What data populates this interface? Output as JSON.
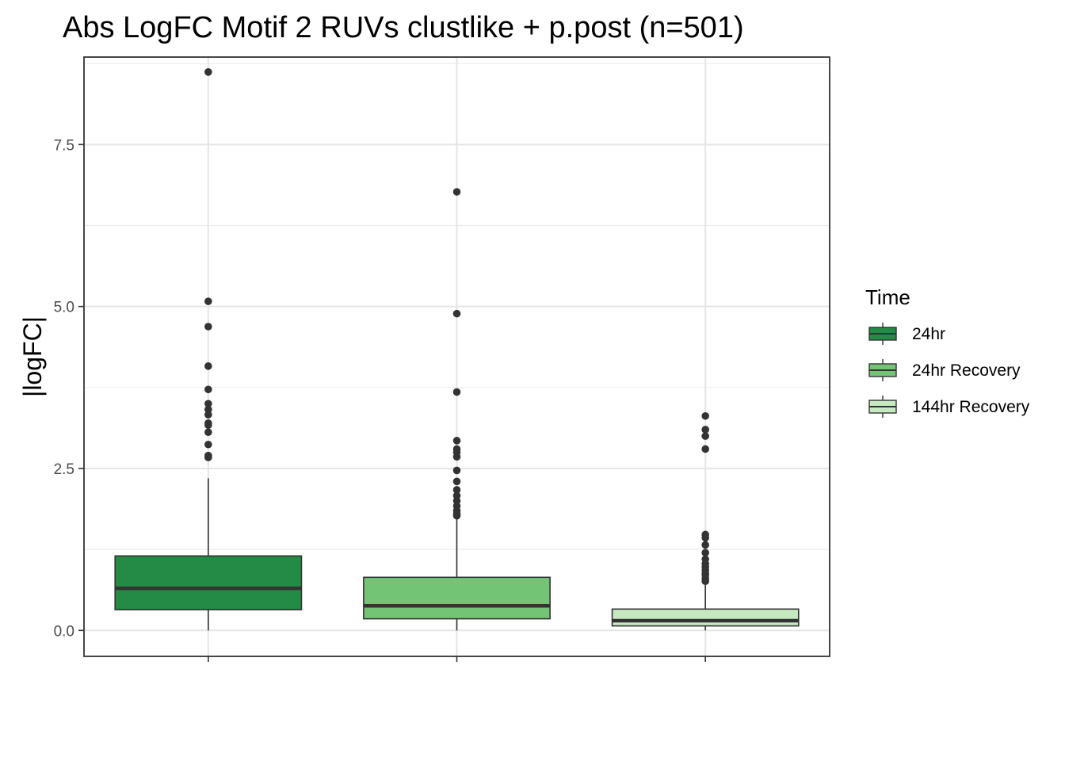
{
  "chart_data": {
    "type": "box",
    "title": "Abs LogFC Motif 2 RUVs clustlike + p.post (n=501)",
    "xlabel": "",
    "ylabel": "|logFC|",
    "ylim": [
      -0.4,
      8.85
    ],
    "yticks": [
      0.0,
      2.5,
      5.0,
      7.5
    ],
    "ytick_labels": [
      "0.0",
      "2.5",
      "5.0",
      "7.5"
    ],
    "grid": true,
    "legend": {
      "title": "Time",
      "placement": "right"
    },
    "series": [
      {
        "name": "24hr",
        "color": "#238b45",
        "q1": 0.32,
        "median": 0.65,
        "q3": 1.15,
        "whisker_low": 0.0,
        "whisker_high": 2.35,
        "outliers": [
          8.62,
          5.08,
          4.69,
          4.08,
          3.72,
          3.5,
          3.41,
          3.33,
          3.2,
          3.17,
          3.06,
          2.87,
          2.7,
          2.67
        ]
      },
      {
        "name": "24hr Recovery",
        "color": "#74c476",
        "q1": 0.18,
        "median": 0.38,
        "q3": 0.82,
        "whisker_low": 0.0,
        "whisker_high": 1.75,
        "outliers": [
          6.77,
          4.89,
          3.68,
          2.93,
          2.8,
          2.75,
          2.68,
          2.47,
          2.3,
          2.17,
          2.08,
          2.0,
          1.92,
          1.85,
          1.8,
          1.77
        ]
      },
      {
        "name": "144hr Recovery",
        "color": "#c7e9c0",
        "q1": 0.07,
        "median": 0.15,
        "q3": 0.33,
        "whisker_low": 0.0,
        "whisker_high": 0.73,
        "outliers": [
          3.31,
          3.1,
          3.0,
          2.8,
          1.48,
          1.43,
          1.32,
          1.2,
          1.1,
          1.03,
          0.98,
          0.93,
          0.88,
          0.85,
          0.8,
          0.76
        ]
      }
    ]
  }
}
